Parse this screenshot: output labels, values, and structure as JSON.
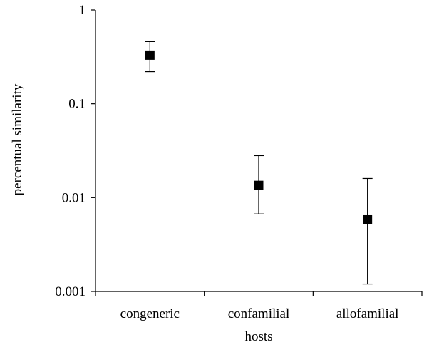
{
  "chart_data": {
    "type": "scatter",
    "title": "",
    "xlabel": "hosts",
    "ylabel": "percentual similarity",
    "y_scale": "log",
    "ylim": [
      0.001,
      1
    ],
    "y_ticks": [
      1,
      0.1,
      0.01,
      0.001
    ],
    "y_tick_labels": [
      "1",
      "0.1",
      "0.01",
      "0.001"
    ],
    "categories": [
      "congeneric",
      "confamilial",
      "allofamilial"
    ],
    "values": [
      0.33,
      0.0135,
      0.0058
    ],
    "error_low": [
      0.22,
      0.0067,
      0.0012
    ],
    "error_high": [
      0.46,
      0.028,
      0.016
    ],
    "marker": "square",
    "grid": false,
    "legend": "none",
    "color": "#000000"
  }
}
